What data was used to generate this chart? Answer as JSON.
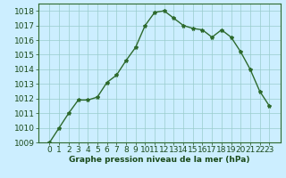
{
  "x": [
    0,
    1,
    2,
    3,
    4,
    5,
    6,
    7,
    8,
    9,
    10,
    11,
    12,
    13,
    14,
    15,
    16,
    17,
    18,
    19,
    20,
    21,
    22,
    23
  ],
  "y": [
    1009,
    1010,
    1011,
    1011.9,
    1011.9,
    1012.1,
    1013.1,
    1013.6,
    1014.6,
    1015.5,
    1017.0,
    1017.9,
    1018.0,
    1017.5,
    1017.0,
    1016.8,
    1016.7,
    1016.2,
    1016.7,
    1016.2,
    1015.2,
    1014.0,
    1012.5,
    1011.5
  ],
  "line_color": "#2d6a2d",
  "marker": "*",
  "marker_size": 3,
  "bg_color": "#cceeff",
  "grid_color": "#99cccc",
  "xlabel": "Graphe pression niveau de la mer (hPa)",
  "xlabel_color": "#1a4a1a",
  "tick_color": "#1a4a1a",
  "ylim": [
    1009,
    1018.5
  ],
  "yticks": [
    1009,
    1010,
    1011,
    1012,
    1013,
    1014,
    1015,
    1016,
    1017,
    1018
  ],
  "xticks": [
    0,
    1,
    2,
    3,
    4,
    5,
    6,
    7,
    8,
    9,
    10,
    11,
    12,
    13,
    14,
    15,
    16,
    17,
    18,
    19,
    20,
    21,
    22,
    23
  ],
  "font_size": 6.5,
  "line_width": 1.0
}
